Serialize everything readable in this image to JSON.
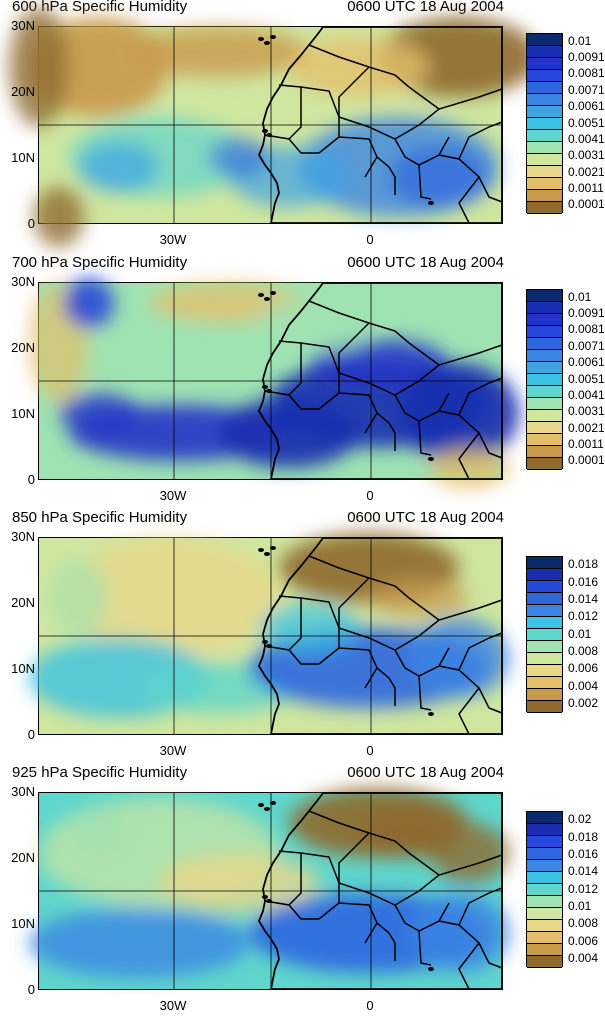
{
  "panels": [
    {
      "title": "600 hPa Specific Humidity",
      "time": "0600 UTC 18 Aug 2004",
      "lat_labels": [
        "30N",
        "20N",
        "10N",
        "0"
      ],
      "lon_labels": [
        "30W",
        "0"
      ],
      "colorbar": {
        "labels": [
          "0.01",
          "0.0091",
          "0.0081",
          "0.0071",
          "0.0061",
          "0.0051",
          "0.0041",
          "0.0031",
          "0.0021",
          "0.0011",
          "0.0001"
        ],
        "colors": [
          "#0a2a6b",
          "#1a2db0",
          "#2233c8",
          "#2748d8",
          "#2f66e0",
          "#3b86e4",
          "#3fa3e6",
          "#39c2e2",
          "#5fd6cc",
          "#9fe3b3",
          "#cfe6a0",
          "#e8d78a",
          "#e3bf6a",
          "#c99a4c",
          "#8f6a2e"
        ]
      },
      "chart_data": {
        "type": "heatmap",
        "variable": "600 hPa Specific Humidity",
        "valid_time": "0600 UTC 18 Aug 2004",
        "lat_range": [
          "0",
          "30N"
        ],
        "lon_labels": [
          "30W",
          "0"
        ],
        "levels": [
          0.0001,
          0.0011,
          0.0021,
          0.0031,
          0.0041,
          0.0051,
          0.0061,
          0.0071,
          0.0081,
          0.0091,
          0.01
        ]
      }
    },
    {
      "title": "700 hPa Specific Humidity",
      "time": "0600 UTC 18 Aug 2004",
      "lat_labels": [
        "30N",
        "20N",
        "10N",
        "0"
      ],
      "lon_labels": [
        "30W",
        "0"
      ],
      "colorbar": {
        "labels": [
          "0.01",
          "0.0091",
          "0.0081",
          "0.0071",
          "0.0061",
          "0.0051",
          "0.0041",
          "0.0031",
          "0.0021",
          "0.0011",
          "0.0001"
        ],
        "colors": [
          "#0a2a6b",
          "#1a2db0",
          "#2233c8",
          "#2748d8",
          "#2f66e0",
          "#3b86e4",
          "#3fa3e6",
          "#39c2e2",
          "#5fd6cc",
          "#9fe3b3",
          "#cfe6a0",
          "#e8d78a",
          "#e3bf6a",
          "#c99a4c",
          "#8f6a2e"
        ]
      },
      "chart_data": {
        "type": "heatmap",
        "variable": "700 hPa Specific Humidity",
        "valid_time": "0600 UTC 18 Aug 2004",
        "lat_range": [
          "0",
          "30N"
        ],
        "lon_labels": [
          "30W",
          "0"
        ],
        "levels": [
          0.0001,
          0.0011,
          0.0021,
          0.0031,
          0.0041,
          0.0051,
          0.0061,
          0.0071,
          0.0081,
          0.0091,
          0.01
        ]
      }
    },
    {
      "title": "850 hPa Specific Humidity",
      "time": "0600 UTC 18 Aug 2004",
      "lat_labels": [
        "30N",
        "20N",
        "10N",
        "0"
      ],
      "lon_labels": [
        "30W",
        "0"
      ],
      "colorbar": {
        "labels": [
          "0.018",
          "0.016",
          "0.014",
          "0.012",
          "0.01",
          "0.008",
          "0.006",
          "0.004",
          "0.002"
        ],
        "colors": [
          "#0a2a6b",
          "#1a2db0",
          "#2748d8",
          "#2f66e0",
          "#3b86e4",
          "#39c2e2",
          "#5fd6cc",
          "#9fe3b3",
          "#cfe6a0",
          "#e8d78a",
          "#e3bf6a",
          "#c99a4c",
          "#8f6a2e"
        ]
      },
      "chart_data": {
        "type": "heatmap",
        "variable": "850 hPa Specific Humidity",
        "valid_time": "0600 UTC 18 Aug 2004",
        "lat_range": [
          "0",
          "30N"
        ],
        "lon_labels": [
          "30W",
          "0"
        ],
        "levels": [
          0.002,
          0.004,
          0.006,
          0.008,
          0.01,
          0.012,
          0.014,
          0.016,
          0.018
        ]
      }
    },
    {
      "title": "925 hPa Specific Humidity",
      "time": "0600 UTC 18 Aug 2004",
      "lat_labels": [
        "30N",
        "20N",
        "10N",
        "0"
      ],
      "lon_labels": [
        "30W",
        "0"
      ],
      "colorbar": {
        "labels": [
          "0.02",
          "0.018",
          "0.016",
          "0.014",
          "0.012",
          "0.01",
          "0.008",
          "0.006",
          "0.004"
        ],
        "colors": [
          "#0a2a6b",
          "#1a2db0",
          "#2748d8",
          "#2f66e0",
          "#3b86e4",
          "#39c2e2",
          "#5fd6cc",
          "#9fe3b3",
          "#cfe6a0",
          "#e8d78a",
          "#e3bf6a",
          "#c99a4c",
          "#8f6a2e"
        ]
      },
      "chart_data": {
        "type": "heatmap",
        "variable": "925 hPa Specific Humidity",
        "valid_time": "0600 UTC 18 Aug 2004",
        "lat_range": [
          "0",
          "30N"
        ],
        "lon_labels": [
          "30W",
          "0"
        ],
        "levels": [
          0.004,
          0.006,
          0.008,
          0.01,
          0.012,
          0.014,
          0.016,
          0.018,
          0.02
        ]
      }
    }
  ]
}
